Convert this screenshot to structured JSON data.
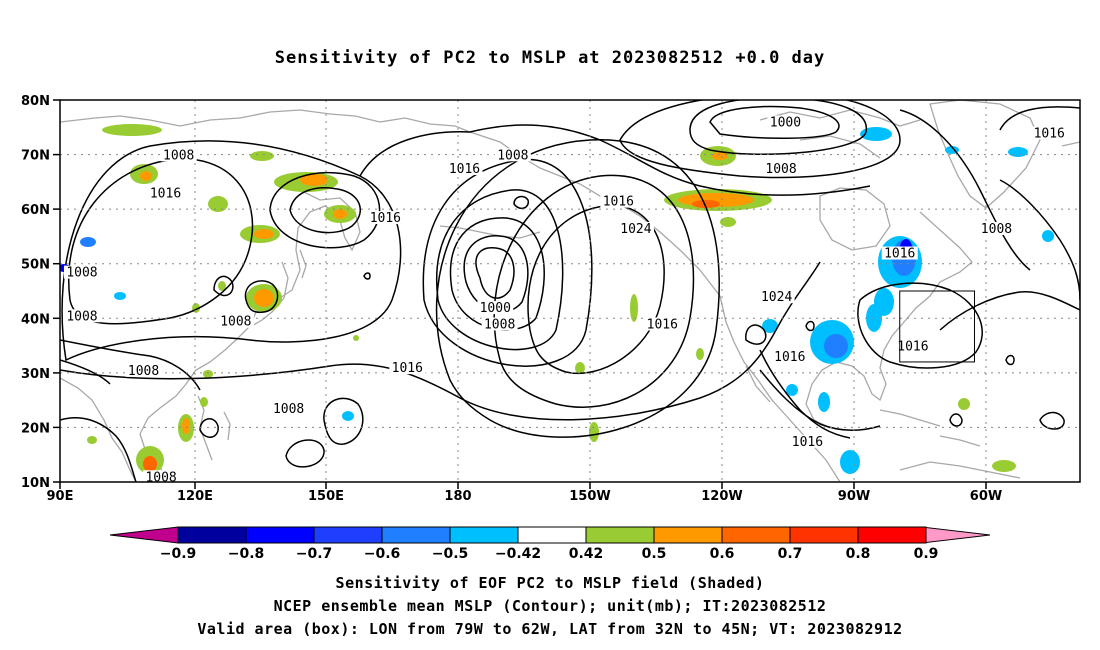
{
  "title": "Sensitivity of PC2 to MSLP at 2023082512 +0.0 day",
  "map": {
    "lat_ticks": [
      "80N",
      "70N",
      "60N",
      "50N",
      "40N",
      "30N",
      "20N",
      "10N"
    ],
    "lon_ticks": [
      "90E",
      "120E",
      "150E",
      "180",
      "150W",
      "120W",
      "90W",
      "60W"
    ],
    "lon_range_deg_east": [
      90,
      322
    ],
    "lat_range_deg_north": [
      10,
      80
    ],
    "grid": "dotted",
    "valid_box": {
      "lon_west": -79,
      "lon_east": -62,
      "lat_south": 32,
      "lat_north": 45
    },
    "contour_labels": [
      {
        "text": "1008",
        "lon": 117,
        "lat": 69.5
      },
      {
        "text": "1016",
        "lon": 114,
        "lat": 62.5
      },
      {
        "text": "1016",
        "lon": 164,
        "lat": 58
      },
      {
        "text": "1016",
        "lon": 182,
        "lat": 67
      },
      {
        "text": "1008",
        "lon": 193,
        "lat": 69.5
      },
      {
        "text": "1000",
        "lon": 255,
        "lat": 75.5
      },
      {
        "text": "1016",
        "lon": 315,
        "lat": 73.5
      },
      {
        "text": "1008",
        "lon": 254,
        "lat": 67
      },
      {
        "text": "1016",
        "lon": 217,
        "lat": 61
      },
      {
        "text": "1024",
        "lon": 221,
        "lat": 56
      },
      {
        "text": "1008",
        "lon": 303,
        "lat": 56
      },
      {
        "text": "1016",
        "lon": 281,
        "lat": 51.5
      },
      {
        "text": "1024",
        "lon": 253,
        "lat": 43.5
      },
      {
        "text": "1000",
        "lon": 189,
        "lat": 41.5
      },
      {
        "text": "1008",
        "lon": 190,
        "lat": 38.5
      },
      {
        "text": "1016",
        "lon": 227,
        "lat": 38.5
      },
      {
        "text": "1016",
        "lon": 284,
        "lat": 34.5
      },
      {
        "text": "1016",
        "lon": 256,
        "lat": 32.5
      },
      {
        "text": "1016",
        "lon": 169,
        "lat": 30.5
      },
      {
        "text": "1008",
        "lon": 95,
        "lat": 48
      },
      {
        "text": "1008",
        "lon": 95,
        "lat": 40
      },
      {
        "text": "1008",
        "lon": 130,
        "lat": 39
      },
      {
        "text": "1008",
        "lon": 109,
        "lat": 30
      },
      {
        "text": "1008",
        "lon": 142,
        "lat": 23
      },
      {
        "text": "1016",
        "lon": 260,
        "lat": 17
      },
      {
        "text": "1008",
        "lon": 113,
        "lat": 10.5
      }
    ]
  },
  "colorbar": {
    "labels": [
      "−0.9",
      "−0.8",
      "−0.7",
      "−0.6",
      "−0.5",
      "−0.42",
      "0.42",
      "0.5",
      "0.6",
      "0.7",
      "0.8",
      "0.9"
    ],
    "colors": [
      "#00009f",
      "#0000ff",
      "#1f3fff",
      "#1f7fff",
      "#00bfff",
      "#ffffff",
      "#99cc33",
      "#ff9900",
      "#ff6600",
      "#ff3300",
      "#ff0000"
    ],
    "low_extend_color": "#c0008c",
    "high_extend_color": "#ff99c8"
  },
  "captions": {
    "line1": "Sensitivity of EOF PC2 to MSLP field (Shaded)",
    "line2": "NCEP ensemble mean MSLP (Contour); unit(mb); IT:2023082512",
    "line3": "Valid area (box): LON from 79W to 62W, LAT from 32N to 45N; VT: 2023082912"
  },
  "colors": {
    "land_outline": "#a8a8a8",
    "contour": "#000000",
    "grid": "#888888"
  }
}
